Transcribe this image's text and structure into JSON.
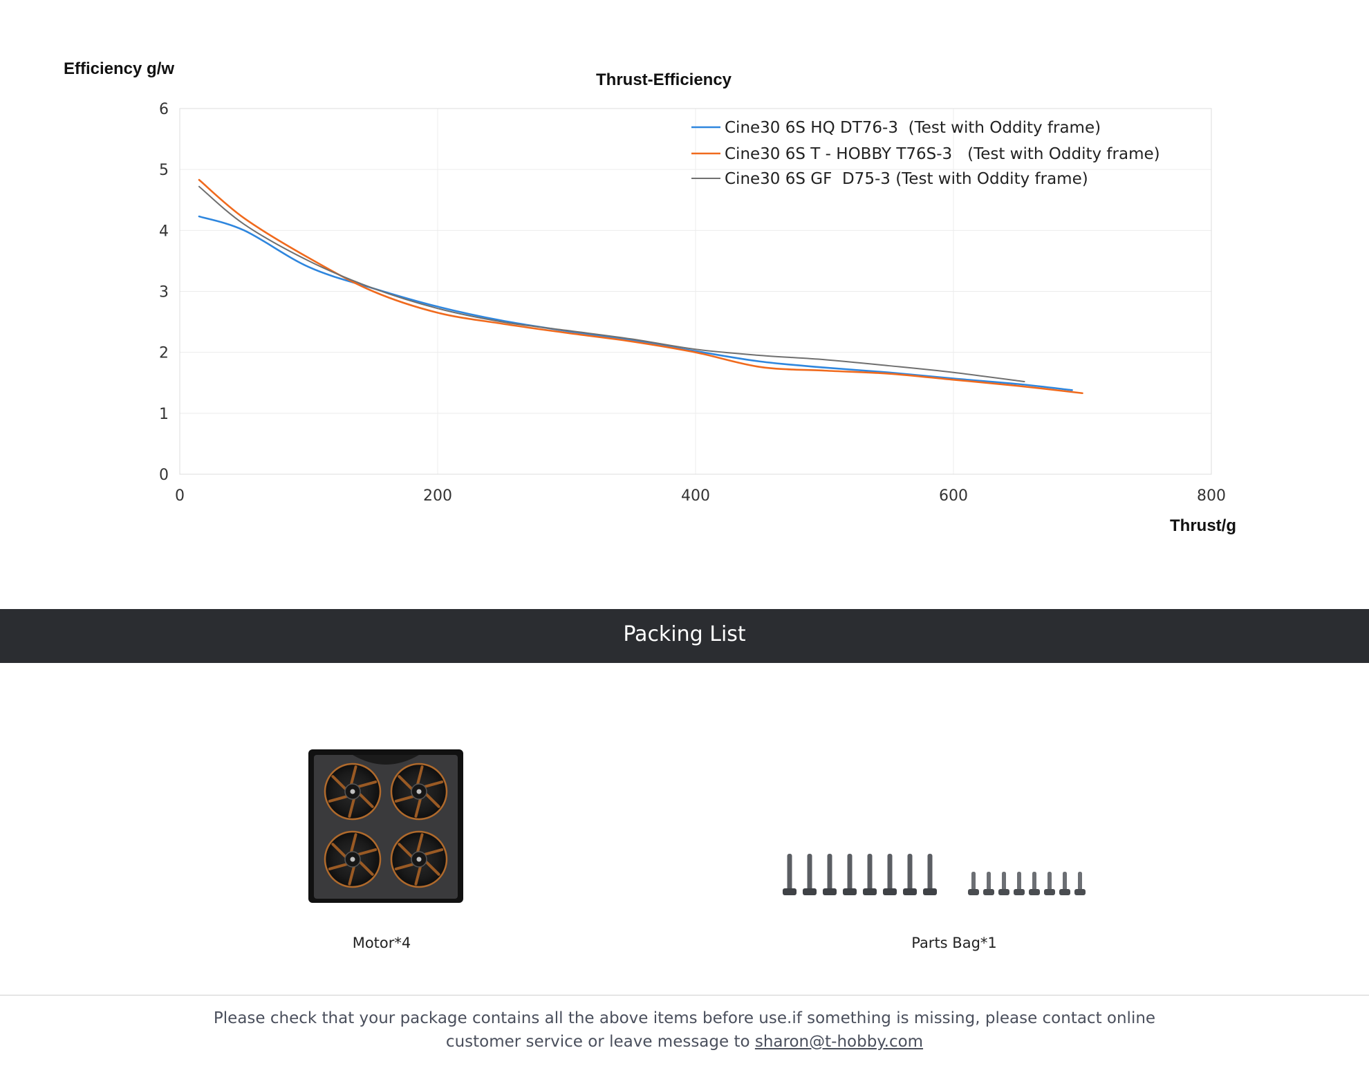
{
  "chart_data": {
    "type": "line",
    "title": "Thrust-Efficiency",
    "ylabel": "Efficiency g/w",
    "xlabel": "Thrust/g",
    "xlim": [
      0,
      800
    ],
    "ylim": [
      0,
      6
    ],
    "xticks": [
      "0",
      "200",
      "400",
      "600",
      "800"
    ],
    "yticks": [
      "0",
      "1",
      "2",
      "3",
      "4",
      "5",
      "6"
    ],
    "grid": true,
    "legend_position": "top-right",
    "series": [
      {
        "name": "Cine30 6S HQ DT76-3  (Test with Oddity frame)",
        "color": "#2e86de",
        "points": [
          [
            15,
            4.23
          ],
          [
            50,
            4.0
          ],
          [
            100,
            3.4
          ],
          [
            150,
            3.05
          ],
          [
            200,
            2.75
          ],
          [
            250,
            2.52
          ],
          [
            300,
            2.35
          ],
          [
            350,
            2.2
          ],
          [
            400,
            2.02
          ],
          [
            450,
            1.85
          ],
          [
            500,
            1.75
          ],
          [
            550,
            1.67
          ],
          [
            600,
            1.57
          ],
          [
            650,
            1.48
          ],
          [
            692,
            1.38
          ]
        ]
      },
      {
        "name": "Cine30 6S T - HOBBY T76S-3   (Test with Oddity frame)",
        "color": "#f06a1d",
        "points": [
          [
            15,
            4.83
          ],
          [
            50,
            4.2
          ],
          [
            100,
            3.55
          ],
          [
            150,
            3.0
          ],
          [
            200,
            2.65
          ],
          [
            250,
            2.47
          ],
          [
            300,
            2.32
          ],
          [
            350,
            2.18
          ],
          [
            400,
            2.0
          ],
          [
            450,
            1.76
          ],
          [
            500,
            1.7
          ],
          [
            550,
            1.65
          ],
          [
            600,
            1.55
          ],
          [
            650,
            1.45
          ],
          [
            700,
            1.33
          ]
        ]
      },
      {
        "name": "Cine30 6S GF  D75-3 (Test with Oddity frame)",
        "color": "#6f6f6f",
        "points": [
          [
            15,
            4.72
          ],
          [
            50,
            4.1
          ],
          [
            100,
            3.5
          ],
          [
            150,
            3.05
          ],
          [
            200,
            2.72
          ],
          [
            250,
            2.5
          ],
          [
            300,
            2.36
          ],
          [
            350,
            2.22
          ],
          [
            400,
            2.05
          ],
          [
            450,
            1.95
          ],
          [
            500,
            1.88
          ],
          [
            550,
            1.78
          ],
          [
            600,
            1.67
          ],
          [
            655,
            1.52
          ]
        ]
      }
    ]
  },
  "packing": {
    "title": "Packing List",
    "items": [
      {
        "label": "Motor*4"
      },
      {
        "label": "Parts Bag*1"
      }
    ]
  },
  "notice": {
    "text": "Please check that your package contains all the above items before use.if something is missing, please contact online customer service or leave message to ",
    "email": "sharon@t-hobby.com"
  }
}
